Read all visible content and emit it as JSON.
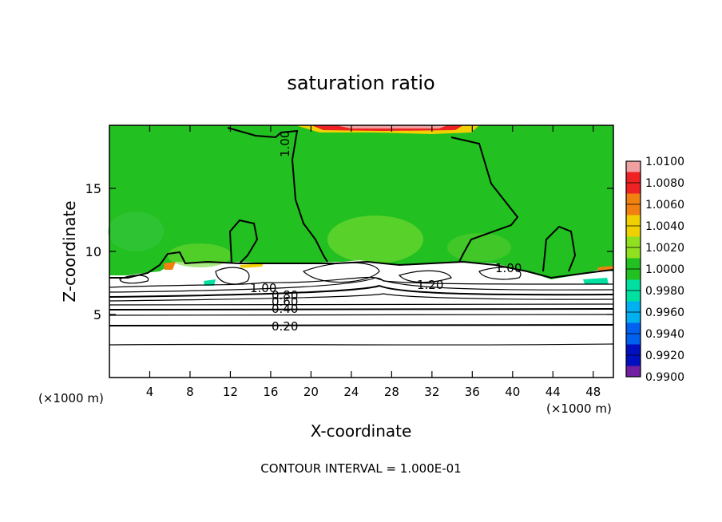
{
  "chart_data": {
    "type": "heatmap",
    "title": "saturation ratio",
    "xlabel": "X-coordinate",
    "ylabel": "Z-coordinate",
    "x_unit_left": "(×1000 m)",
    "x_unit_right": "(×1000 m)",
    "xlim": [
      0,
      50
    ],
    "ylim": [
      0,
      20
    ],
    "x_ticks": [
      4,
      8,
      12,
      16,
      20,
      24,
      28,
      32,
      36,
      40,
      44,
      48
    ],
    "y_ticks": [
      5,
      10,
      15
    ],
    "footer": "CONTOUR INTERVAL = 1.000E-01",
    "colorbar": {
      "labels": [
        "1.0100",
        "1.0080",
        "1.0060",
        "1.0040",
        "1.0020",
        "1.0000",
        "0.9980",
        "0.9960",
        "0.9940",
        "0.9920",
        "0.9900"
      ],
      "colors": [
        "#f0a0a0",
        "#ee2222",
        "#f08010",
        "#f0d000",
        "#90e020",
        "#22c020",
        "#00e0a0",
        "#00b0f0",
        "#0060f0",
        "#0010c0",
        "#7020a0"
      ]
    },
    "contours": [
      {
        "level": "0.20",
        "z": 4.1
      },
      {
        "level": "0.40",
        "z": 5.2
      },
      {
        "level": "0.60",
        "z": 5.7
      },
      {
        "level": "0.80",
        "z": 6.2
      },
      {
        "level": "1.00",
        "z": 6.6
      },
      {
        "level": "1.00",
        "label_x": 18,
        "label_z": 18.2
      },
      {
        "level": "1.00",
        "label_x": 40,
        "label_z": 8.5
      },
      {
        "level": "1.20",
        "label_x": 31,
        "label_z": 7.0
      }
    ],
    "grid": false
  }
}
